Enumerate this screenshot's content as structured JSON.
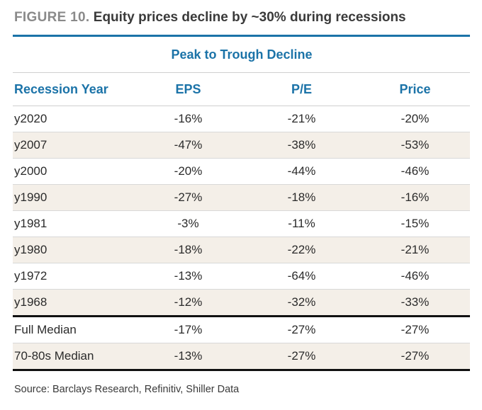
{
  "figure": {
    "number": "FIGURE 10.",
    "title": "Equity prices decline by ~30% during recessions"
  },
  "table": {
    "group_header": "Peak to Trough Decline",
    "columns": [
      "Recession Year",
      "EPS",
      "P/E",
      "Price"
    ],
    "rows": [
      {
        "year": "y2020",
        "eps": "-16%",
        "pe": "-21%",
        "price": "-20%"
      },
      {
        "year": "y2007",
        "eps": "-47%",
        "pe": "-38%",
        "price": "-53%"
      },
      {
        "year": "y2000",
        "eps": "-20%",
        "pe": "-44%",
        "price": "-46%"
      },
      {
        "year": "y1990",
        "eps": "-27%",
        "pe": "-18%",
        "price": "-16%"
      },
      {
        "year": "y1981",
        "eps": "-3%",
        "pe": "-11%",
        "price": "-15%"
      },
      {
        "year": "y1980",
        "eps": "-18%",
        "pe": "-22%",
        "price": "-21%"
      },
      {
        "year": "y1972",
        "eps": "-13%",
        "pe": "-64%",
        "price": "-46%"
      },
      {
        "year": "y1968",
        "eps": "-12%",
        "pe": "-32%",
        "price": "-33%"
      }
    ],
    "summary": [
      {
        "label": "Full Median",
        "eps": "-17%",
        "pe": "-27%",
        "price": "-27%"
      },
      {
        "label": "70-80s Median",
        "eps": "-13%",
        "pe": "-27%",
        "price": "-27%"
      }
    ]
  },
  "source": "Source: Barclays Research, Refinitiv, Shiller Data",
  "colors": {
    "accent_blue": "#1b73a8",
    "row_shade": "#f4efe8",
    "title_gray": "#8a8a8a"
  }
}
